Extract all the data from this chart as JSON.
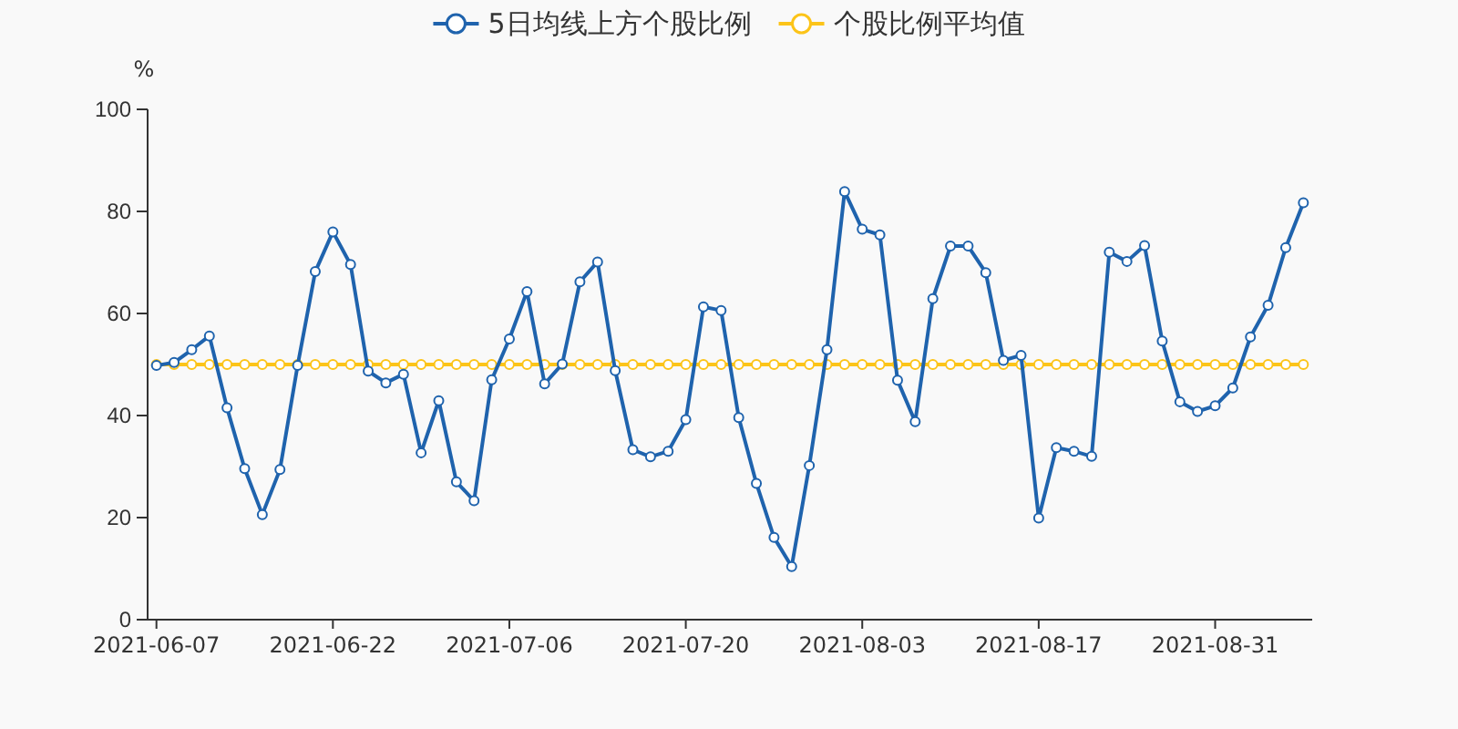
{
  "chart_data": {
    "type": "line",
    "ylabel": "%",
    "categories": [
      "2021-06-07",
      null,
      null,
      null,
      null,
      null,
      null,
      null,
      null,
      null,
      "2021-06-22",
      null,
      null,
      null,
      null,
      null,
      null,
      null,
      null,
      null,
      "2021-07-06",
      null,
      null,
      null,
      null,
      null,
      null,
      null,
      null,
      null,
      "2021-07-20",
      null,
      null,
      null,
      null,
      null,
      null,
      null,
      null,
      null,
      "2021-08-03",
      null,
      null,
      null,
      null,
      null,
      null,
      null,
      null,
      null,
      "2021-08-17",
      null,
      null,
      null,
      null,
      null,
      null,
      null,
      null,
      null,
      "2021-08-31",
      null,
      null,
      null,
      null,
      null
    ],
    "series": [
      {
        "name": "5日均线上方个股比例",
        "color": "#1f63ad",
        "values": [
          49.8,
          50.4,
          52.9,
          55.6,
          41.5,
          29.6,
          20.6,
          29.4,
          49.8,
          68.2,
          76.0,
          69.6,
          48.7,
          46.4,
          48.1,
          32.7,
          42.9,
          27.0,
          23.3,
          47.0,
          55.0,
          64.3,
          46.2,
          50.1,
          66.2,
          70.1,
          48.8,
          33.3,
          31.9,
          33.0,
          39.2,
          61.3,
          60.6,
          39.6,
          26.7,
          16.1,
          10.4,
          30.2,
          52.9,
          83.9,
          76.5,
          75.4,
          46.9,
          38.8,
          62.9,
          73.2,
          73.2,
          68.0,
          50.8,
          51.8,
          19.9,
          33.7,
          33.0,
          32.0,
          72.0,
          70.2,
          73.3,
          54.6,
          42.7,
          40.8,
          41.9,
          45.4,
          55.4,
          61.6,
          72.9,
          81.7
        ]
      },
      {
        "name": "个股比例平均值",
        "color": "#fcc419",
        "values": [
          50,
          50,
          50,
          50,
          50,
          50,
          50,
          50,
          50,
          50,
          50,
          50,
          50,
          50,
          50,
          50,
          50,
          50,
          50,
          50,
          50,
          50,
          50,
          50,
          50,
          50,
          50,
          50,
          50,
          50,
          50,
          50,
          50,
          50,
          50,
          50,
          50,
          50,
          50,
          50,
          50,
          50,
          50,
          50,
          50,
          50,
          50,
          50,
          50,
          50,
          50,
          50,
          50,
          50,
          50,
          50,
          50,
          50,
          50,
          50,
          50,
          50,
          50,
          50,
          50,
          50
        ]
      }
    ],
    "ylim": [
      0,
      100
    ],
    "yticks": [
      0,
      20,
      40,
      60,
      80,
      100
    ],
    "legend": "top",
    "marker": "circle",
    "line_style": "solid",
    "grid": false
  }
}
